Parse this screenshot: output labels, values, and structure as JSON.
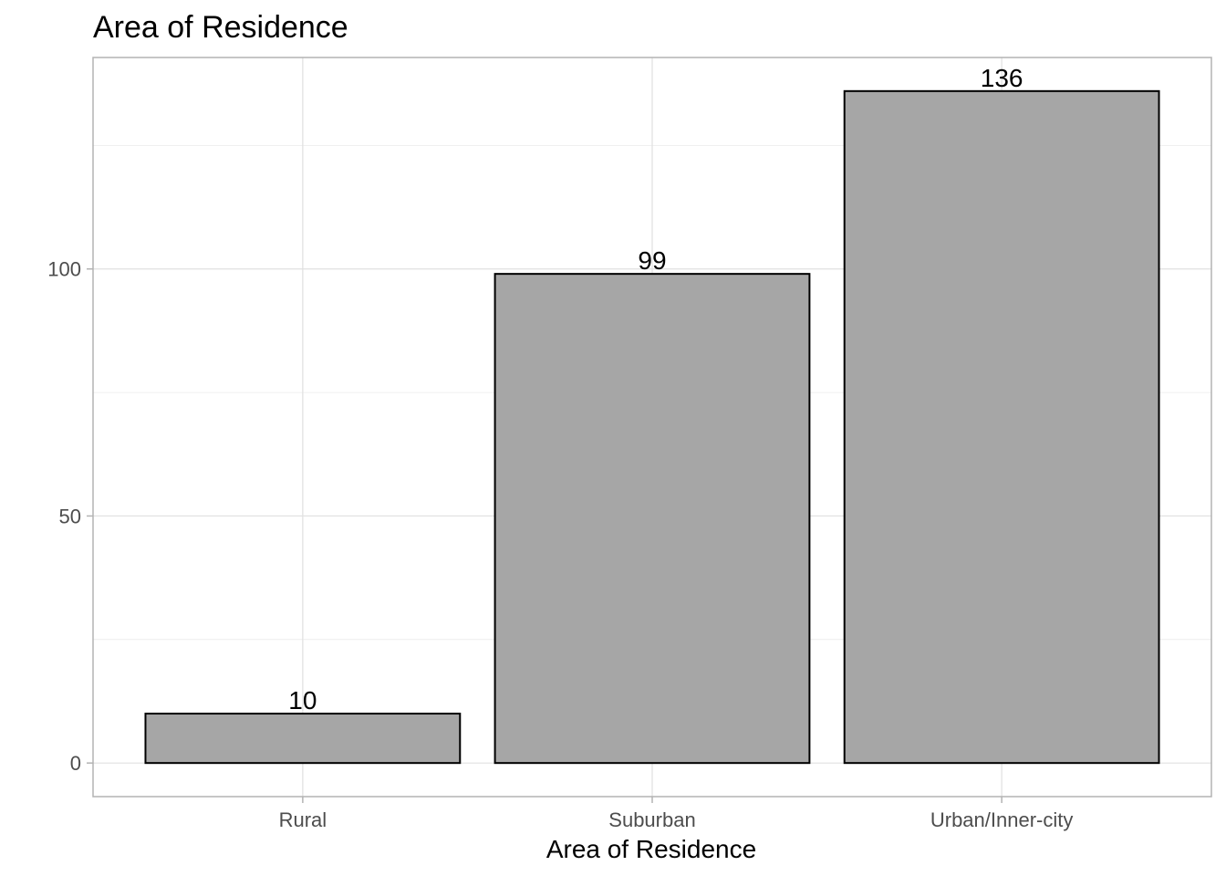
{
  "chart_data": {
    "type": "bar",
    "title": "Area of Residence",
    "xlabel": "Area of Residence",
    "ylabel": "",
    "categories": [
      "Rural",
      "Suburban",
      "Urban/Inner-city"
    ],
    "values": [
      10,
      99,
      136
    ],
    "data_labels": [
      "10",
      "99",
      "136"
    ],
    "y_ticks": [
      0,
      50,
      100
    ],
    "y_tick_labels": [
      "0",
      "50",
      "100"
    ],
    "ylim": [
      -6.8,
      142.8
    ],
    "grid": true,
    "legend": "none",
    "bar_fill": "#a6a6a6",
    "bar_outline": "#000000"
  }
}
